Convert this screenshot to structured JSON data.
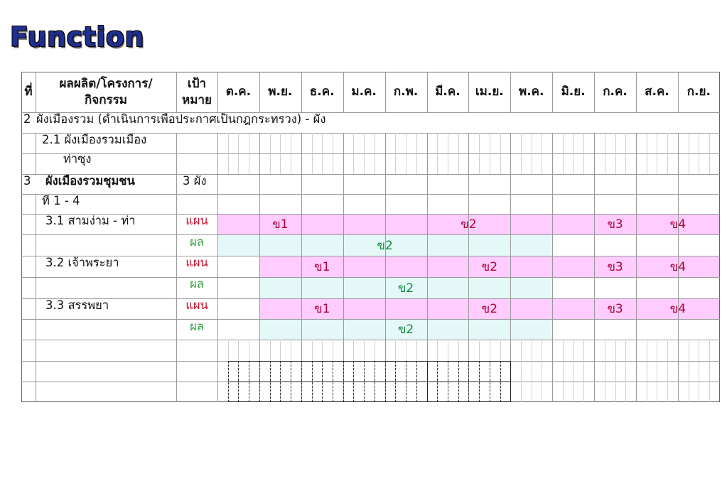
{
  "slide_title": "Function",
  "headers": {
    "no": "ที่",
    "product_line1": "ผลผลิต/โครงการ/",
    "product_line2": "กิจกรรม",
    "target_line1": "เป้า",
    "target_line2": "หมาย",
    "months": [
      "ต.ค.",
      "พ.ย.",
      "ธ.ค.",
      "ม.ค.",
      "ก.พ.",
      "มี.ค.",
      "เม.ย.",
      "พ.ค.",
      "มิ.ย.",
      "ก.ค.",
      "ส.ค.",
      "ก.ย."
    ]
  },
  "rows": {
    "r2_no": "2",
    "r2_text": "ผังเมืองรวม (ดำเนินการเพื่อประกาศเป็นกฎกระทรวง)  -  ผัง",
    "r2_1_line1": "2.1 ผังเมืองรวมเมือง",
    "r2_1_line2": "ท่าซุง",
    "r3_no": "3",
    "r3_text": "ผังเมืองรวมชุมชน",
    "r3_target": "3 ผัง",
    "r3_text2": "ที่ 1 - 4",
    "r31": "3.1 สามง่าม - ท่า",
    "r32": "3.2 เจ้าพระยา",
    "r33": "3.3 สรรพยา",
    "plan_label": "แผน",
    "result_label": "ผล"
  },
  "bars": {
    "ph1": "ข1",
    "ph2": "ข2",
    "ph3": "ข3",
    "ph4": "ข4"
  },
  "colors": {
    "plan_fill": "#ffccff",
    "result_fill": "#e4f8f8",
    "plan_text": "#c8102e",
    "result_text": "#2b9a3a",
    "title": "#1f2f8f"
  }
}
